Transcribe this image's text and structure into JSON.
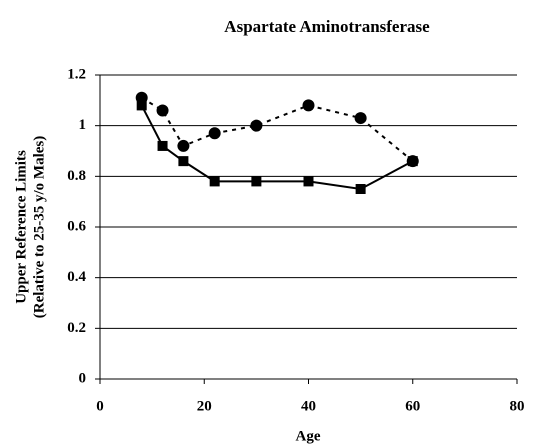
{
  "chart_data": {
    "type": "line",
    "title": "Aspartate Aminotransferase",
    "xlabel": "Age",
    "ylabel": [
      "Upper Reference Limits",
      "(Relative to 25-35 y/o Males)"
    ],
    "xlim": [
      0,
      80
    ],
    "xticks": [
      0,
      20,
      40,
      60,
      80
    ],
    "ylim": [
      0,
      1.2
    ],
    "yticks": [
      0,
      0.2,
      0.4,
      0.6,
      0.8,
      1,
      1.2
    ],
    "grid": true,
    "series": [
      {
        "color": "#000000",
        "marker": "square",
        "dash": "solid",
        "x": [
          8,
          12,
          16,
          22,
          30,
          40,
          50,
          60
        ],
        "values": [
          1.08,
          0.92,
          0.86,
          0.78,
          0.78,
          0.78,
          0.75,
          0.86
        ]
      },
      {
        "color": "#000000",
        "marker": "circle",
        "dash": "dotted",
        "x": [
          8,
          12,
          16,
          22,
          30,
          40,
          50,
          60
        ],
        "values": [
          1.11,
          1.06,
          0.92,
          0.97,
          1.0,
          1.08,
          1.03,
          0.86
        ]
      }
    ]
  }
}
